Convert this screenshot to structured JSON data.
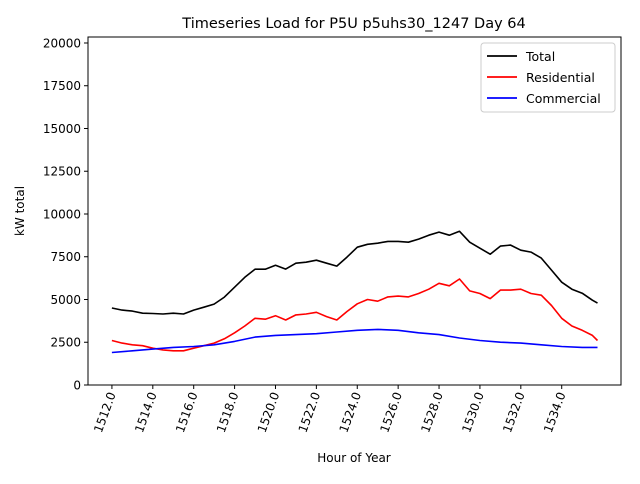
{
  "chart_data": {
    "type": "line",
    "title": "Timeseries Load for P5U p5uhs30_1247  Day 64",
    "xlabel": "Hour of Year",
    "ylabel": "kW total",
    "xlim": [
      1510.83,
      1536.9
    ],
    "ylim": [
      0,
      20350
    ],
    "xticks": [
      1512,
      1514,
      1516,
      1518,
      1520,
      1522,
      1524,
      1526,
      1528,
      1530,
      1532,
      1534
    ],
    "xtick_labels": [
      "1512.0",
      "1514.0",
      "1516.0",
      "1518.0",
      "1520.0",
      "1522.0",
      "1524.0",
      "1526.0",
      "1528.0",
      "1530.0",
      "1532.0",
      "1534.0"
    ],
    "yticks": [
      0,
      2500,
      5000,
      7500,
      10000,
      12500,
      15000,
      17500,
      20000
    ],
    "ytick_labels": [
      "0",
      "2500",
      "5000",
      "7500",
      "10000",
      "12500",
      "15000",
      "17500",
      "20000"
    ],
    "grid": false,
    "legend_position": "top-right",
    "series": [
      {
        "name": "Total",
        "color": "#000000",
        "x": [
          1512,
          1512.5,
          1513,
          1513.5,
          1514,
          1514.5,
          1515,
          1515.5,
          1516,
          1516.5,
          1517,
          1517.5,
          1518,
          1518.5,
          1519,
          1519.5,
          1520,
          1520.5,
          1521,
          1521.5,
          1522,
          1522.5,
          1523,
          1523.5,
          1524,
          1524.5,
          1525,
          1525.5,
          1526,
          1526.5,
          1527,
          1527.5,
          1528,
          1528.5,
          1529,
          1529.5,
          1530,
          1530.5,
          1531,
          1531.5,
          1532,
          1532.5,
          1533,
          1533.5,
          1534,
          1534.5,
          1535,
          1535.5,
          1535.75
        ],
        "values": [
          4500,
          4380,
          4320,
          4200,
          4180,
          4150,
          4200,
          4150,
          4380,
          4550,
          4730,
          5140,
          5720,
          6300,
          6770,
          6770,
          7000,
          6780,
          7120,
          7180,
          7300,
          7120,
          6950,
          7480,
          8060,
          8230,
          8290,
          8400,
          8400,
          8350,
          8530,
          8760,
          8940,
          8760,
          8990,
          8350,
          8000,
          7650,
          8120,
          8180,
          7880,
          7770,
          7420,
          6720,
          6010,
          5600,
          5370,
          4960,
          4790
        ]
      },
      {
        "name": "Residential",
        "color": "#ff0000",
        "x": [
          1512,
          1512.5,
          1513,
          1513.5,
          1514,
          1514.5,
          1515,
          1515.5,
          1516,
          1516.5,
          1517,
          1517.5,
          1518,
          1518.5,
          1519,
          1519.5,
          1520,
          1520.5,
          1521,
          1521.5,
          1522,
          1522.5,
          1523,
          1523.5,
          1524,
          1524.5,
          1525,
          1525.5,
          1526,
          1526.5,
          1527,
          1527.5,
          1528,
          1528.5,
          1529,
          1529.5,
          1530,
          1530.5,
          1531,
          1531.5,
          1532,
          1532.5,
          1533,
          1533.5,
          1534,
          1534.5,
          1535,
          1535.5,
          1535.75
        ],
        "values": [
          2600,
          2450,
          2350,
          2300,
          2150,
          2050,
          2000,
          2000,
          2150,
          2300,
          2450,
          2700,
          3050,
          3450,
          3900,
          3850,
          4050,
          3800,
          4100,
          4150,
          4250,
          4000,
          3800,
          4300,
          4750,
          5000,
          4900,
          5150,
          5200,
          5150,
          5350,
          5600,
          5950,
          5800,
          6200,
          5500,
          5350,
          5050,
          5550,
          5550,
          5600,
          5350,
          5250,
          4650,
          3900,
          3450,
          3200,
          2900,
          2600
        ]
      },
      {
        "name": "Commercial",
        "color": "#0000ff",
        "x": [
          1512,
          1513,
          1514,
          1515,
          1516,
          1517,
          1518,
          1519,
          1520,
          1521,
          1522,
          1523,
          1524,
          1525,
          1526,
          1527,
          1528,
          1529,
          1530,
          1531,
          1532,
          1533,
          1534,
          1535,
          1535.75
        ],
        "values": [
          1900,
          2000,
          2100,
          2200,
          2250,
          2350,
          2550,
          2800,
          2900,
          2950,
          3000,
          3100,
          3200,
          3250,
          3200,
          3050,
          2950,
          2750,
          2600,
          2500,
          2450,
          2350,
          2250,
          2200,
          2200
        ]
      }
    ]
  }
}
